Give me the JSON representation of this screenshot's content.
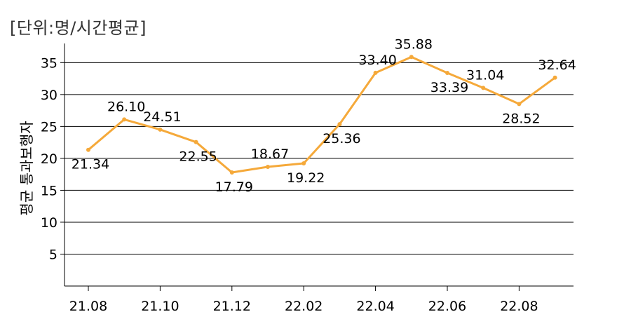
{
  "unit_label": "[단위:명/시간평균]",
  "chart_data": {
    "type": "line",
    "title": "",
    "ylabel": "평균 통과보행자",
    "xlabel": "",
    "ylim": [
      0,
      38
    ],
    "yticks": [
      5,
      10,
      15,
      20,
      25,
      30,
      35
    ],
    "grid": true,
    "x": [
      "21.08",
      "21.09",
      "21.10",
      "21.11",
      "21.12",
      "22.01",
      "22.02",
      "22.03",
      "22.04",
      "22.05",
      "22.06",
      "22.07",
      "22.08",
      "22.09"
    ],
    "x_tick_labels": [
      "21.08",
      "21.10",
      "21.12",
      "22.02",
      "22.04",
      "22.06",
      "22.08"
    ],
    "series": [
      {
        "name": "",
        "color": "#F5A93A",
        "values": [
          21.34,
          26.1,
          24.51,
          22.55,
          17.79,
          18.67,
          19.22,
          25.36,
          33.4,
          35.88,
          33.39,
          31.04,
          28.52,
          32.64
        ],
        "labels": [
          "21.34",
          "26.10",
          "24.51",
          "22.55",
          "17.79",
          "18.67",
          "19.22",
          "25.36",
          "33.40",
          "35.88",
          "33.39",
          "31.04",
          "28.52",
          "32.64"
        ]
      }
    ]
  }
}
